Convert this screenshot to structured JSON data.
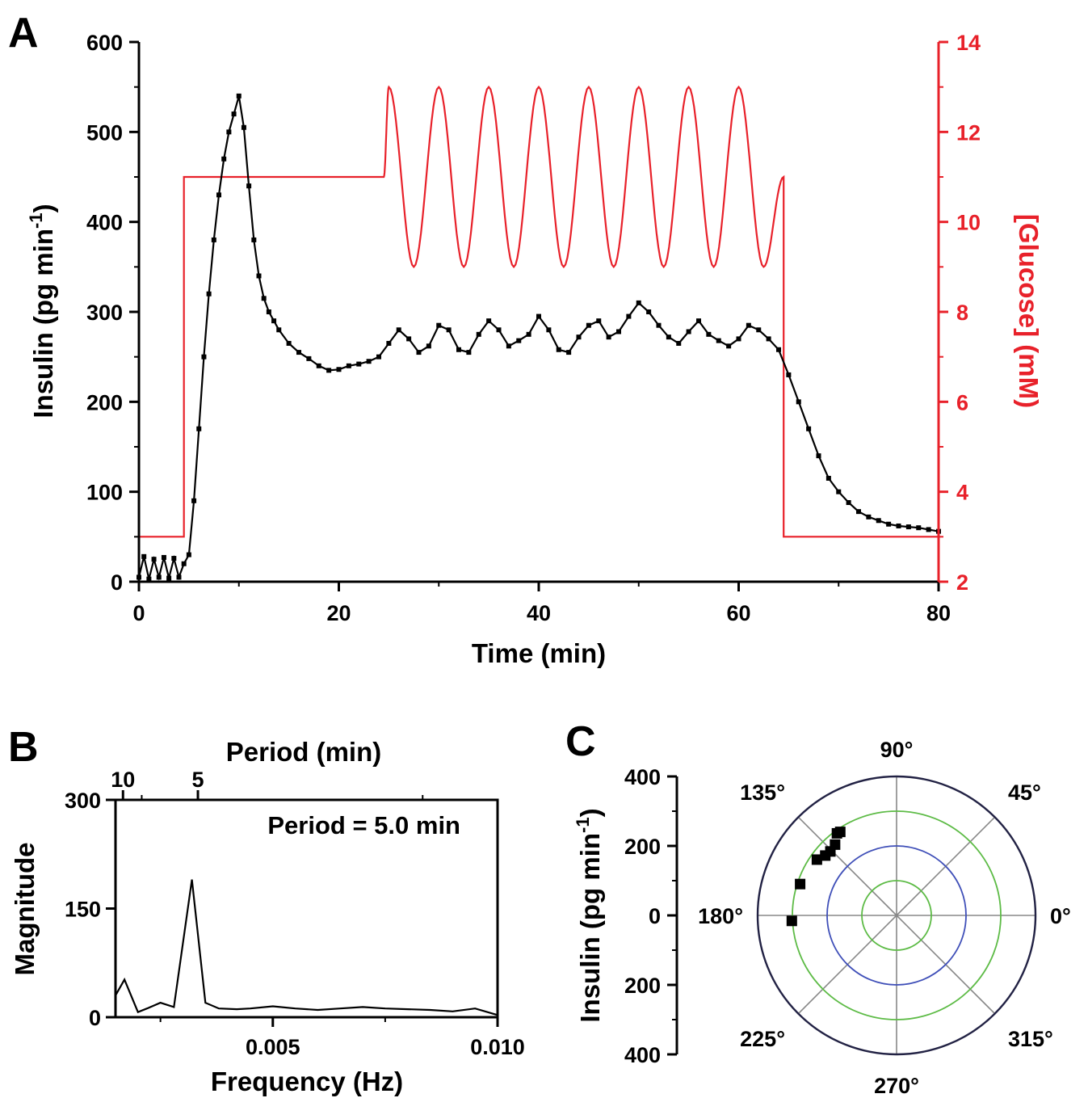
{
  "colors": {
    "insulin": "#000000",
    "glucose": "#e8212a",
    "ring_green": "#5dbb46",
    "ring_blue": "#3f4fb8",
    "polar_outer": "#222244",
    "spokes": "#888888"
  },
  "chart_data": [
    {
      "panel": "A",
      "type": "line",
      "xlabel": "Time (min)",
      "ylabel": "Insulin (pg min",
      "ylabel_sup": "-1",
      "ylabel_end": ")",
      "y2label": "[Glucose] (mM)",
      "xlim": [
        0,
        80
      ],
      "ylim": [
        0,
        600
      ],
      "y2lim": [
        2,
        14
      ],
      "xticks": [
        "0",
        "20",
        "40",
        "60",
        "80"
      ],
      "yticks": [
        "0",
        "100",
        "200",
        "300",
        "400",
        "500",
        "600"
      ],
      "y2ticks": [
        "2",
        "4",
        "6",
        "8",
        "10",
        "12",
        "14"
      ],
      "series": [
        {
          "axis": "left",
          "marker": "square",
          "x": [
            0,
            0.5,
            1,
            1.5,
            2,
            2.5,
            3,
            3.5,
            4,
            4.5,
            5,
            5.5,
            6,
            6.5,
            7,
            7.5,
            8,
            8.5,
            9,
            9.5,
            10,
            10.5,
            11,
            11.5,
            12,
            12.5,
            13,
            13.5,
            14,
            15,
            16,
            17,
            18,
            19,
            20,
            21,
            22,
            23,
            24,
            25,
            26,
            27,
            28,
            29,
            30,
            31,
            32,
            33,
            34,
            35,
            36,
            37,
            38,
            39,
            40,
            41,
            42,
            43,
            44,
            45,
            46,
            47,
            48,
            49,
            50,
            51,
            52,
            53,
            54,
            55,
            56,
            57,
            58,
            59,
            60,
            61,
            62,
            63,
            64,
            65,
            66,
            67,
            68,
            69,
            70,
            71,
            72,
            73,
            74,
            75,
            76,
            77,
            78,
            79,
            80
          ],
          "y": [
            5,
            28,
            3,
            25,
            5,
            27,
            4,
            26,
            5,
            20,
            30,
            90,
            170,
            250,
            320,
            380,
            430,
            470,
            500,
            520,
            540,
            505,
            440,
            380,
            340,
            315,
            300,
            290,
            280,
            265,
            255,
            248,
            240,
            235,
            236,
            240,
            242,
            245,
            250,
            265,
            280,
            270,
            255,
            262,
            285,
            280,
            258,
            255,
            275,
            290,
            280,
            262,
            268,
            275,
            295,
            280,
            258,
            255,
            272,
            285,
            290,
            272,
            278,
            295,
            310,
            300,
            285,
            272,
            265,
            278,
            290,
            275,
            268,
            262,
            270,
            285,
            280,
            270,
            258,
            230,
            200,
            170,
            140,
            115,
            100,
            88,
            78,
            72,
            68,
            64,
            62,
            61,
            60,
            58,
            56
          ]
        },
        {
          "axis": "right",
          "marker": "none",
          "x": [
            0,
            4.5,
            4.5,
            24.5,
            25,
            27.5,
            30,
            32.5,
            35,
            37.5,
            40,
            42.5,
            45,
            47.5,
            50,
            52.5,
            55,
            57.5,
            60,
            62.5,
            64.5,
            64.5,
            80
          ],
          "y": [
            3,
            3,
            11,
            11,
            13,
            9,
            13,
            9,
            13,
            9,
            13,
            9,
            13,
            9,
            13,
            9,
            13,
            9,
            13,
            9,
            11,
            3,
            3
          ]
        }
      ]
    },
    {
      "panel": "B",
      "type": "line",
      "xlabel": "Frequency (Hz)",
      "ylabel": "Magnitude",
      "top_xlabel": "Period (min)",
      "annotation": "Period = 5.0 min",
      "xlim": [
        0.0015,
        0.01
      ],
      "ylim": [
        0,
        300
      ],
      "xticks": [
        "0.005",
        "0.010"
      ],
      "yticks": [
        "0",
        "150",
        "300"
      ],
      "top_xticks": [
        "10",
        "5"
      ],
      "x": [
        0.0015,
        0.0017,
        0.002,
        0.0022,
        0.0025,
        0.0028,
        0.0032,
        0.0035,
        0.0038,
        0.0042,
        0.0045,
        0.005,
        0.0055,
        0.006,
        0.0065,
        0.007,
        0.0075,
        0.008,
        0.0085,
        0.009,
        0.0095,
        0.01
      ],
      "y": [
        30,
        52,
        7,
        12,
        20,
        14,
        190,
        20,
        12,
        11,
        12,
        15,
        12,
        10,
        12,
        14,
        12,
        11,
        10,
        8,
        12,
        3
      ]
    },
    {
      "panel": "C",
      "type": "scatter",
      "coordinates": "polar",
      "ylabel": "Insulin (pg min",
      "ylabel_sup": "-1",
      "ylabel_end": ")",
      "rlim": [
        0,
        400
      ],
      "scale_ticks": [
        "400",
        "200",
        "0",
        "200",
        "400"
      ],
      "angle_labels": [
        "0°",
        "45°",
        "90°",
        "135°",
        "180°",
        "225°",
        "270°",
        "315°"
      ],
      "rings": [
        100,
        200,
        300,
        400
      ],
      "points": [
        {
          "angle_deg": 124,
          "r": 290
        },
        {
          "angle_deg": 126,
          "r": 292
        },
        {
          "angle_deg": 131,
          "r": 270
        },
        {
          "angle_deg": 136,
          "r": 265
        },
        {
          "angle_deg": 140,
          "r": 268
        },
        {
          "angle_deg": 145,
          "r": 280
        },
        {
          "angle_deg": 162,
          "r": 292
        },
        {
          "angle_deg": 183,
          "r": 302
        }
      ]
    }
  ]
}
